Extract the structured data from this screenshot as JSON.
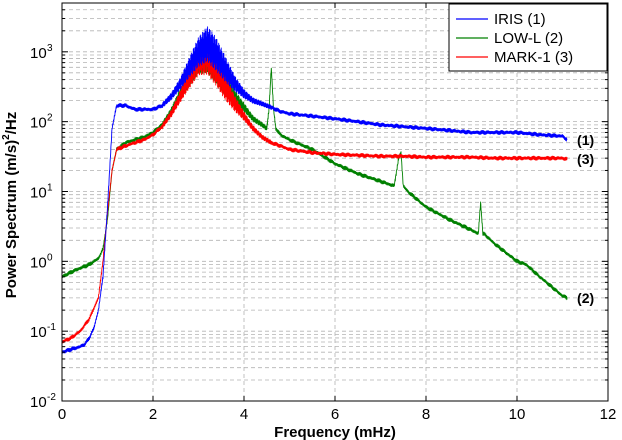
{
  "chart_data": {
    "type": "line",
    "xlabel": "Frequency (mHz)",
    "ylabel_main": "Power Spectrum (m/s)",
    "ylabel_sup": "2",
    "ylabel_tail": "/Hz",
    "xlim": [
      0,
      12
    ],
    "ylim": [
      0.01,
      5000
    ],
    "yscale": "log",
    "grid": true,
    "legend_position": "top-right",
    "x_ticks": [
      "0",
      "2",
      "4",
      "6",
      "8",
      "10",
      "12"
    ],
    "y_ticks": [
      {
        "base": "10",
        "exp": "-2",
        "value": 0.01
      },
      {
        "base": "10",
        "exp": "-1",
        "value": 0.1
      },
      {
        "base": "10",
        "exp": "0",
        "value": 1
      },
      {
        "base": "10",
        "exp": "1",
        "value": 10
      },
      {
        "base": "10",
        "exp": "2",
        "value": 100
      },
      {
        "base": "10",
        "exp": "3",
        "value": 1000
      }
    ],
    "series": [
      {
        "name": "IRIS (1)",
        "color": "#0000ff",
        "end_label": "(1)",
        "x": [
          0,
          0.2,
          0.4,
          0.5,
          0.6,
          0.7,
          0.8,
          0.9,
          1.0,
          1.1,
          1.2,
          1.4,
          1.6,
          1.8,
          2.0,
          2.2,
          2.4,
          2.6,
          2.8,
          3.0,
          3.2,
          3.4,
          3.6,
          3.8,
          4.0,
          4.2,
          4.4,
          4.6,
          4.8,
          5.0,
          5.5,
          6.0,
          6.5,
          7.0,
          7.5,
          8.0,
          8.5,
          9.0,
          9.5,
          10.0,
          10.5,
          11.0,
          11.1
        ],
        "y": [
          0.05,
          0.055,
          0.06,
          0.065,
          0.08,
          0.11,
          0.2,
          0.6,
          6,
          80,
          170,
          170,
          150,
          150,
          150,
          170,
          230,
          350,
          600,
          1000,
          1300,
          900,
          550,
          350,
          250,
          200,
          180,
          160,
          140,
          130,
          120,
          110,
          100,
          90,
          85,
          80,
          75,
          70,
          70,
          70,
          65,
          62,
          55
        ]
      },
      {
        "name": "LOW-L (2)",
        "color": "#008000",
        "end_label": "(2)",
        "x": [
          0,
          0.2,
          0.4,
          0.6,
          0.8,
          0.9,
          1.0,
          1.1,
          1.2,
          1.4,
          1.6,
          1.8,
          2.0,
          2.2,
          2.4,
          2.6,
          2.8,
          3.0,
          3.2,
          3.4,
          3.6,
          3.8,
          4.0,
          4.2,
          4.4,
          4.5,
          4.55,
          4.6,
          4.65,
          4.7,
          4.8,
          5.0,
          5.5,
          6.0,
          6.5,
          7.0,
          7.3,
          7.4,
          7.45,
          7.5,
          7.6,
          8.0,
          8.5,
          9.0,
          9.15,
          9.2,
          9.25,
          9.3,
          9.5,
          10.0,
          10.2,
          10.5,
          11.0,
          11.1
        ],
        "y": [
          0.6,
          0.7,
          0.8,
          0.9,
          1.1,
          1.5,
          4,
          20,
          40,
          50,
          55,
          60,
          70,
          90,
          140,
          250,
          450,
          800,
          900,
          600,
          350,
          220,
          160,
          110,
          90,
          80,
          150,
          600,
          150,
          80,
          65,
          55,
          40,
          25,
          18,
          14,
          12,
          30,
          36,
          12,
          10,
          6,
          4,
          2.8,
          2.5,
          7,
          2.5,
          2.4,
          1.8,
          1.0,
          0.9,
          0.6,
          0.32,
          0.3
        ]
      },
      {
        "name": "MARK-1 (3)",
        "color": "#ff0000",
        "end_label": "(3)",
        "x": [
          0,
          0.2,
          0.4,
          0.6,
          0.8,
          0.9,
          1.0,
          1.1,
          1.2,
          1.4,
          1.6,
          1.8,
          2.0,
          2.2,
          2.4,
          2.6,
          2.8,
          3.0,
          3.2,
          3.4,
          3.6,
          3.8,
          4.0,
          4.2,
          4.4,
          4.6,
          4.8,
          5.0,
          5.5,
          6.0,
          6.5,
          7.0,
          7.5,
          8.0,
          8.5,
          9.0,
          9.5,
          10.0,
          10.5,
          11.0,
          11.1
        ],
        "y": [
          0.07,
          0.08,
          0.1,
          0.15,
          0.3,
          1.0,
          5,
          20,
          40,
          45,
          50,
          55,
          65,
          85,
          130,
          230,
          420,
          750,
          850,
          550,
          300,
          180,
          120,
          80,
          60,
          50,
          45,
          40,
          36,
          34,
          33,
          32,
          32,
          31,
          31,
          31,
          30,
          30,
          30,
          30,
          29
        ]
      }
    ]
  }
}
